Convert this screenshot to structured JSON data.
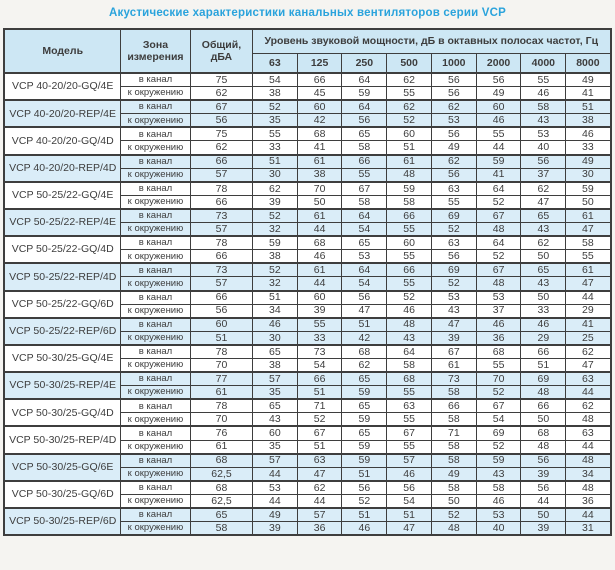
{
  "title": "Акустические характеристики канальных вентиляторов  серии VCP",
  "colors": {
    "title_text": "#2aa3dc",
    "header_bg": "#cde7f4",
    "shaded_row_bg": "#daedf8",
    "border": "#3e3e3e",
    "cell_text": "#3d3d3d",
    "page_bg": "#f5f4f1"
  },
  "table": {
    "col_model": "Модель",
    "col_zone": "Зона измерения",
    "col_total": "Общий, дБА",
    "col_spectrum": "Уровень звуковой мощности, дБ в октавных полосах частот, Гц",
    "frequencies": [
      "63",
      "125",
      "250",
      "500",
      "1000",
      "2000",
      "4000",
      "8000"
    ],
    "zone_in": "в канал",
    "zone_out": "к окружению",
    "groups": [
      {
        "model": "VCP 40-20/20-GQ/4E",
        "shaded": false,
        "in": {
          "total": "75",
          "values": [
            54,
            66,
            64,
            62,
            56,
            56,
            55,
            49
          ]
        },
        "out": {
          "total": "62",
          "values": [
            38,
            45,
            59,
            55,
            56,
            49,
            46,
            41
          ]
        }
      },
      {
        "model": "VCP 40-20/20-REP/4E",
        "shaded": true,
        "in": {
          "total": "67",
          "values": [
            52,
            60,
            64,
            62,
            62,
            60,
            58,
            51
          ]
        },
        "out": {
          "total": "56",
          "values": [
            35,
            42,
            56,
            52,
            53,
            46,
            43,
            38
          ]
        }
      },
      {
        "model": "VCP 40-20/20-GQ/4D",
        "shaded": false,
        "in": {
          "total": "75",
          "values": [
            55,
            68,
            65,
            60,
            56,
            55,
            53,
            46
          ]
        },
        "out": {
          "total": "62",
          "values": [
            33,
            41,
            58,
            51,
            49,
            44,
            40,
            33
          ]
        }
      },
      {
        "model": "VCP 40-20/20-REP/4D",
        "shaded": true,
        "in": {
          "total": "66",
          "values": [
            51,
            61,
            66,
            61,
            62,
            59,
            56,
            49
          ]
        },
        "out": {
          "total": "57",
          "values": [
            30,
            38,
            55,
            48,
            56,
            41,
            37,
            30
          ]
        }
      },
      {
        "model": "VCP 50-25/22-GQ/4E",
        "shaded": false,
        "in": {
          "total": "78",
          "values": [
            62,
            70,
            67,
            59,
            63,
            64,
            62,
            59
          ]
        },
        "out": {
          "total": "66",
          "values": [
            39,
            50,
            58,
            58,
            55,
            52,
            47,
            50
          ]
        }
      },
      {
        "model": "VCP 50-25/22-REP/4E",
        "shaded": true,
        "in": {
          "total": "73",
          "values": [
            52,
            61,
            64,
            66,
            69,
            67,
            65,
            61
          ]
        },
        "out": {
          "total": "57",
          "values": [
            32,
            44,
            54,
            55,
            52,
            48,
            43,
            47
          ]
        }
      },
      {
        "model": "VCP 50-25/22-GQ/4D",
        "shaded": false,
        "in": {
          "total": "78",
          "values": [
            59,
            68,
            65,
            60,
            63,
            64,
            62,
            58
          ]
        },
        "out": {
          "total": "66",
          "values": [
            38,
            46,
            53,
            55,
            56,
            52,
            50,
            55
          ]
        }
      },
      {
        "model": "VCP 50-25/22-REP/4D",
        "shaded": true,
        "in": {
          "total": "73",
          "values": [
            52,
            61,
            64,
            66,
            69,
            67,
            65,
            61
          ]
        },
        "out": {
          "total": "57",
          "values": [
            32,
            44,
            54,
            55,
            52,
            48,
            43,
            47
          ]
        }
      },
      {
        "model": "VCP 50-25/22-GQ/6D",
        "shaded": false,
        "in": {
          "total": "66",
          "values": [
            51,
            60,
            56,
            52,
            53,
            53,
            50,
            44
          ]
        },
        "out": {
          "total": "56",
          "values": [
            34,
            39,
            47,
            46,
            43,
            37,
            33,
            29
          ]
        }
      },
      {
        "model": "VCP 50-25/22-REP/6D",
        "shaded": true,
        "in": {
          "total": "60",
          "values": [
            46,
            55,
            51,
            48,
            47,
            46,
            46,
            41
          ]
        },
        "out": {
          "total": "51",
          "values": [
            30,
            33,
            42,
            43,
            39,
            36,
            29,
            25
          ]
        }
      },
      {
        "model": "VCP 50-30/25-GQ/4E",
        "shaded": false,
        "in": {
          "total": "78",
          "values": [
            65,
            73,
            68,
            64,
            67,
            68,
            66,
            62
          ]
        },
        "out": {
          "total": "70",
          "values": [
            38,
            54,
            62,
            58,
            61,
            55,
            51,
            47
          ]
        }
      },
      {
        "model": "VCP 50-30/25-REP/4E",
        "shaded": true,
        "in": {
          "total": "77",
          "values": [
            57,
            66,
            65,
            68,
            73,
            70,
            69,
            63
          ]
        },
        "out": {
          "total": "61",
          "values": [
            35,
            51,
            59,
            55,
            58,
            52,
            48,
            44
          ]
        }
      },
      {
        "model": "VCP 50-30/25-GQ/4D",
        "shaded": false,
        "in": {
          "total": "78",
          "values": [
            65,
            71,
            65,
            63,
            66,
            67,
            66,
            62
          ]
        },
        "out": {
          "total": "70",
          "values": [
            43,
            52,
            59,
            55,
            58,
            54,
            50,
            48
          ]
        }
      },
      {
        "model": "VCP 50-30/25-REP/4D",
        "shaded": false,
        "in": {
          "total": "76",
          "values": [
            60,
            67,
            65,
            67,
            71,
            69,
            68,
            63
          ]
        },
        "out": {
          "total": "61",
          "values": [
            35,
            51,
            59,
            55,
            58,
            52,
            48,
            44
          ]
        }
      },
      {
        "model": "VCP 50-30/25-GQ/6E",
        "shaded": true,
        "in": {
          "total": "68",
          "values": [
            57,
            63,
            59,
            57,
            58,
            59,
            56,
            48
          ]
        },
        "out": {
          "total": "62,5",
          "values": [
            44,
            47,
            51,
            46,
            49,
            43,
            39,
            34
          ]
        }
      },
      {
        "model": "VCP 50-30/25-GQ/6D",
        "shaded": false,
        "in": {
          "total": "68",
          "values": [
            53,
            62,
            56,
            56,
            58,
            58,
            56,
            48
          ]
        },
        "out": {
          "total": "62,5",
          "values": [
            44,
            44,
            52,
            54,
            50,
            46,
            44,
            36
          ]
        }
      },
      {
        "model": "VCP 50-30/25-REP/6D",
        "shaded": true,
        "in": {
          "total": "65",
          "values": [
            49,
            57,
            51,
            51,
            52,
            53,
            50,
            44
          ]
        },
        "out": {
          "total": "58",
          "values": [
            39,
            36,
            46,
            47,
            48,
            40,
            39,
            31
          ]
        }
      }
    ]
  }
}
